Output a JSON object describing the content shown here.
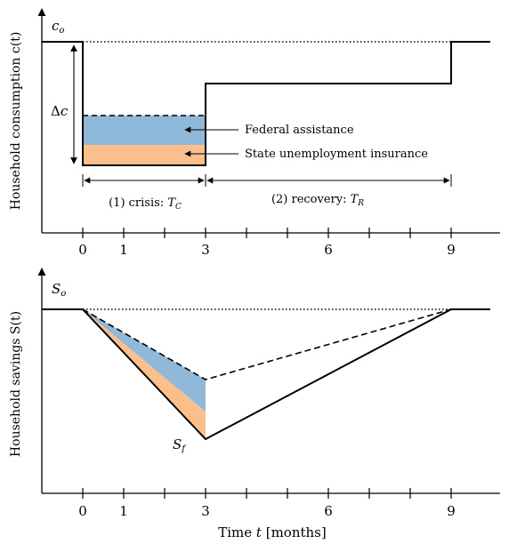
{
  "axis_x_ticks": [
    "0",
    "1",
    "3",
    "6",
    "9"
  ],
  "top_panel": {
    "ylabel": "Household consumption c(t)",
    "baseline_label": "c_o",
    "delta_label": "Δc",
    "legend_federal": "Federal assistance",
    "legend_state": "State unemployment insurance",
    "phase_crisis_label": "(1) crisis: T_C",
    "phase_recovery_label": "(2) recovery: T_R"
  },
  "bottom_panel": {
    "ylabel": "Household savings S(t)",
    "baseline_label": "S_o",
    "final_label": "S_f"
  },
  "xlabel": "Time t [months]",
  "colors": {
    "federal": "#8fb8d9",
    "state": "#fbbf8c",
    "line": "#000000"
  }
}
